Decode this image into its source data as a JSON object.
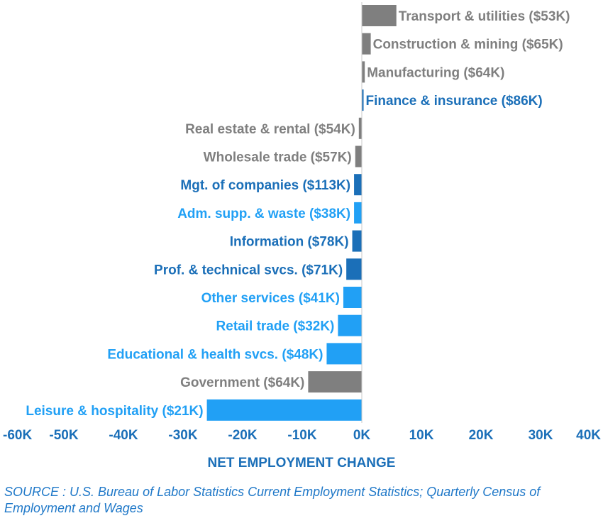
{
  "colors": {
    "gray": "#7f7f7f",
    "dark_blue": "#1b6fb8",
    "light_blue": "#21a0f5",
    "text_blue": "#1b6fb8",
    "source_blue": "#1f78c8"
  },
  "chart_data": {
    "type": "bar",
    "orientation": "horizontal",
    "categories": [
      "Transport & utilities ($53K)",
      "Construction & mining ($65K)",
      "Manufacturing ($64K)",
      "Finance & insurance ($86K)",
      "Real estate & rental ($54K)",
      "Wholesale trade ($57K)",
      "Mgt. of companies ($113K)",
      "Adm. supp. & waste ($38K)",
      "Information ($78K)",
      "Prof. & technical svcs. ($71K)",
      "Other services ($41K)",
      "Retail trade ($32K)",
      "Educational & health svcs. ($48K)",
      "Government ($64K)",
      "Leisure & hospitality ($21K)"
    ],
    "values": [
      5800,
      1500,
      500,
      300,
      -500,
      -1100,
      -1300,
      -1300,
      -1600,
      -2600,
      -3100,
      -4000,
      -5900,
      -9000,
      -26000
    ],
    "bar_colors": [
      "gray",
      "gray",
      "gray",
      "dark_blue",
      "gray",
      "gray",
      "dark_blue",
      "light_blue",
      "dark_blue",
      "dark_blue",
      "light_blue",
      "light_blue",
      "light_blue",
      "gray",
      "light_blue"
    ],
    "label_colors": [
      "gray",
      "gray",
      "gray",
      "dark_blue",
      "gray",
      "gray",
      "dark_blue",
      "light_blue",
      "dark_blue",
      "dark_blue",
      "light_blue",
      "light_blue",
      "light_blue",
      "gray",
      "light_blue"
    ],
    "xlim": [
      -60000,
      40000
    ],
    "xticks": [
      -60000,
      -50000,
      -40000,
      -30000,
      -20000,
      -10000,
      0,
      10000,
      20000,
      30000,
      40000
    ],
    "xtick_labels": [
      "-60K",
      "-50K",
      "-40K",
      "-30K",
      "-20K",
      "-10K",
      "0K",
      "10K",
      "20K",
      "30K",
      "40K"
    ],
    "xlabel": "NET EMPLOYMENT CHANGE",
    "ylabel": "",
    "title": "",
    "grid": false,
    "legend": "none"
  },
  "source_note": "SOURCE : U.S. Bureau of Labor Statistics Current Employment Statistics; Quarterly Census of Employment and Wages"
}
